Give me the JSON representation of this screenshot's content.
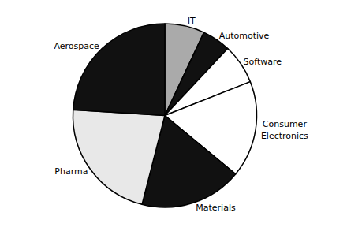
{
  "chart_data": {
    "type": "pie",
    "categories": [
      "IT",
      "Automotive",
      "Software",
      "Consumer\nElectronics",
      "Materials",
      "Pharma",
      "Aerospace"
    ],
    "values": [
      7,
      5,
      7,
      17,
      18,
      22,
      24
    ],
    "colors": [
      "#aaaaaa",
      "#111111",
      "#ffffff",
      "#ffffff",
      "#111111",
      "#e8e8e8",
      "#111111"
    ]
  }
}
